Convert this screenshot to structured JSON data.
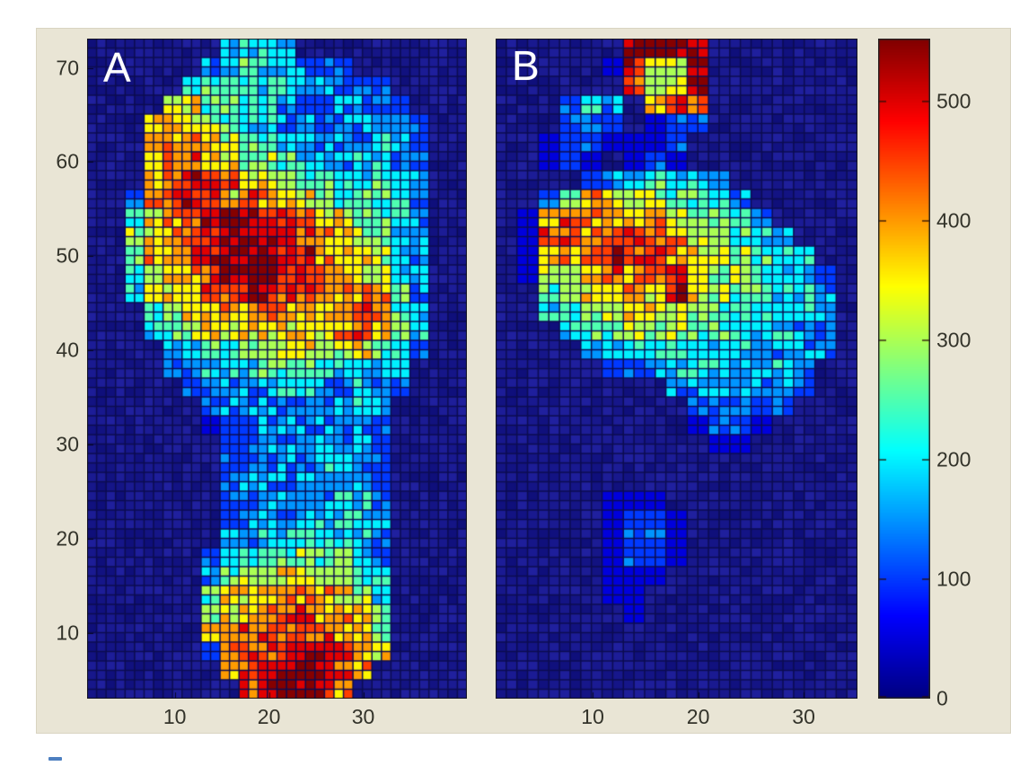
{
  "figure": {
    "background_color": "#ffffff",
    "axes_background_color": "#e9e5d5",
    "tick_label_color": "#33332a",
    "plot_background_color": "#1a1a96",
    "description": "Two pedobarographic (foot pressure) heatmaps with shared jet colorbar"
  },
  "chart_data": [
    {
      "type": "heatmap",
      "panel_label": "A",
      "title": "",
      "xlabel": "",
      "ylabel": "",
      "x_ticks": [
        10,
        20,
        30
      ],
      "y_ticks": [
        10,
        20,
        30,
        40,
        50,
        60,
        70
      ],
      "x_range": [
        0.7,
        41
      ],
      "y_range": [
        3,
        73.1
      ],
      "value_range": [
        0,
        553
      ],
      "colormap": "jet",
      "grid_cols": 20,
      "grid_rows": 35,
      "grid_encoding": "rows top-to-bottom; each char = intensity level hex 0-b; value ~ level x 50; each char spans 2x2 sensor cells",
      "grid": [
        "00000003443000000000",
        "00000034544322000000",
        "00000455544332220000",
        "00006755443323332000",
        "00078765443323333200",
        "00088876554433343200",
        "00089987665443443200",
        "00089aa9776554454300",
        "00289a97987765554300",
        "005789abba9877554300",
        "006789abbba987654300",
        "006889abbbaa87764300",
        "0057889aaba998774300",
        "00477899aa9988885300",
        "00056778898878985400",
        "00045677777778986400",
        "00003455667766754200",
        "00002344455544443000",
        "00000233334433432000",
        "00000023333333430000",
        "00000012333333320000",
        "00000002233343320000",
        "00000002233344320000",
        "00000002333333320000",
        "00000002233334430000",
        "00000002333444430000",
        "00000003344554430000",
        "00000024455655430000",
        "00000035667766540000",
        "00000057788887640000",
        "00000067889988750000",
        "00000078999998760000",
        "0000002899aaa9870000",
        "000000089abba9800000",
        "000000009abba8000000"
      ]
    },
    {
      "type": "heatmap",
      "panel_label": "B",
      "title": "",
      "xlabel": "",
      "ylabel": "",
      "x_ticks": [
        10,
        20,
        30
      ],
      "y_ticks": [],
      "x_range": [
        0.8,
        35.1
      ],
      "y_range": [
        3,
        73.1
      ],
      "value_range": [
        0,
        553
      ],
      "colormap": "jet",
      "grid_cols": 17,
      "grid_rows": 35,
      "grid_encoding": "rows top-to-bottom; each char = intensity level hex 0-b; value ~ level x 50; each char spans 2x2 sensor cells",
      "grid": [
        "000000bbba0000000",
        "000001a76b0000000",
        "000000967b0000000",
        "00034307980000000",
        "00023201220000000",
        "00122111200000000",
        "00121012100000000",
        "00002345443000000",
        "00258766554300000",
        "01898878765430000",
        "019989a9876543000",
        "01889a9a877654400",
        "01778988976654420",
        "00567887a76554430",
        "00456677765544430",
        "00045566655444330",
        "00003445544433330",
        "00000223444334300",
        "00000000333334200",
        "00000000023322000",
        "00000000012210000",
        "00000000001100000",
        "00000000000000000",
        "00000000000000000",
        "00000111000000000",
        "00000122100000000",
        "00000122100000000",
        "00000122100000000",
        "00000111000000000",
        "00000110000000000",
        "00000010000000000",
        "00000000000000000",
        "00000000000000000",
        "00000000000000000",
        "00000000000000000"
      ]
    }
  ],
  "colorbar": {
    "min": 0,
    "max": 553,
    "tick_values": [
      0,
      100,
      200,
      300,
      400,
      500
    ],
    "tick_labels": [
      "0",
      "100",
      "200",
      "300",
      "400",
      "500"
    ],
    "colormap": "jet",
    "gradient_stops_bottom_to_top": [
      "#00008f",
      "#0000ff",
      "#00c3ff",
      "#51ffae",
      "#aeff51",
      "#f3ff00",
      "#ff9700",
      "#ff3a00",
      "#dc0000",
      "#800000"
    ]
  }
}
